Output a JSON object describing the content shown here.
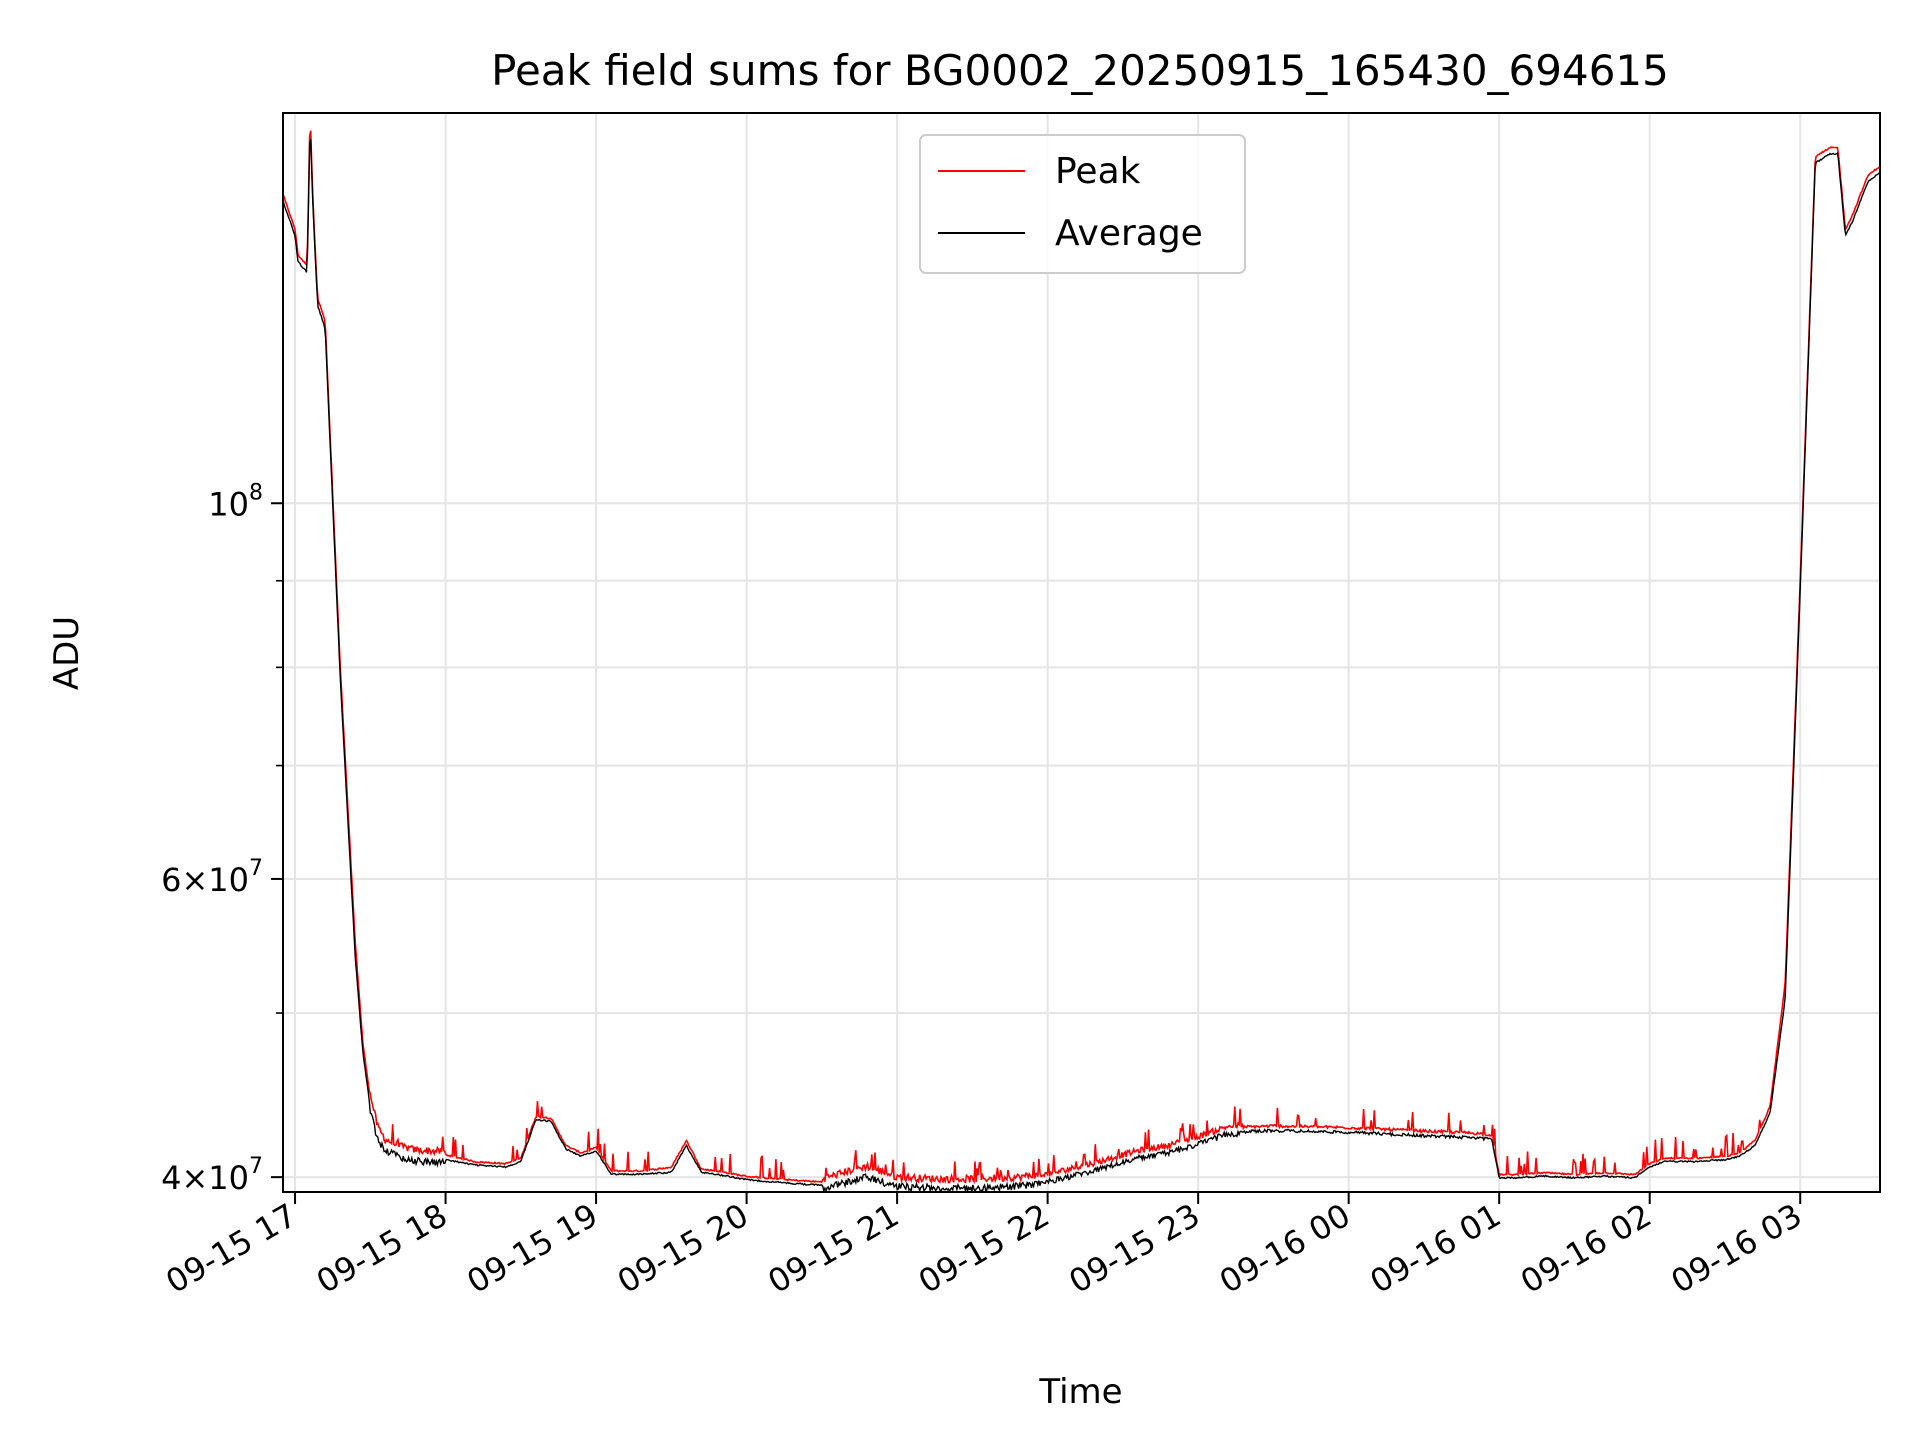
{
  "chart_data": {
    "type": "line",
    "title": "Peak field sums for BG0002_20250915_165430_694615",
    "xlabel": "Time",
    "ylabel": "ADU",
    "yscale": "log",
    "xlim": [
      16.92,
      27.53
    ],
    "ylim": [
      39200000,
      170000000
    ],
    "x_ticks": [
      {
        "value": 17,
        "label": "09-15 17"
      },
      {
        "value": 18,
        "label": "09-15 18"
      },
      {
        "value": 19,
        "label": "09-15 19"
      },
      {
        "value": 20,
        "label": "09-15 20"
      },
      {
        "value": 21,
        "label": "09-15 21"
      },
      {
        "value": 22,
        "label": "09-15 22"
      },
      {
        "value": 23,
        "label": "09-15 23"
      },
      {
        "value": 24,
        "label": "09-16 00"
      },
      {
        "value": 25,
        "label": "09-16 01"
      },
      {
        "value": 26,
        "label": "09-16 02"
      },
      {
        "value": 27,
        "label": "09-16 03"
      }
    ],
    "y_major_ticks": [
      {
        "value": 40000000,
        "mantissa": "4",
        "exponent": "7"
      },
      {
        "value": 60000000,
        "mantissa": "6",
        "exponent": "7"
      },
      {
        "value": 100000000,
        "mantissa": "",
        "exponent": "8"
      }
    ],
    "y_minor_ticks": [
      50000000,
      70000000,
      80000000,
      90000000
    ],
    "x_units": "hours since 2025-09-15 00:00",
    "grid": true,
    "legend_position": "upper-center",
    "series": [
      {
        "name": "Peak",
        "color": "#ff0000",
        "x": [
          16.92,
          17.0,
          17.02,
          17.08,
          17.1,
          17.12,
          17.15,
          17.2,
          17.3,
          17.4,
          17.45,
          17.5,
          17.55,
          17.6,
          17.65,
          17.7,
          17.8,
          18.0,
          18.2,
          18.4,
          18.5,
          18.6,
          18.7,
          18.8,
          18.9,
          19.0,
          19.1,
          19.3,
          19.5,
          19.6,
          19.7,
          19.8,
          20.0,
          20.3,
          20.5,
          20.7,
          20.8,
          21.0,
          21.3,
          21.5,
          21.8,
          22.0,
          22.3,
          22.6,
          22.8,
          23.0,
          23.2,
          23.5,
          24.0,
          24.5,
          24.8,
          24.95,
          25.0,
          25.1,
          25.3,
          25.5,
          25.7,
          25.9,
          26.0,
          26.1,
          26.3,
          26.5,
          26.6,
          26.7,
          26.8,
          26.9,
          27.0,
          27.1,
          27.2,
          27.25,
          27.3,
          27.35,
          27.4,
          27.45,
          27.53
        ],
        "y": [
          152000000,
          145000000,
          140000000,
          138000000,
          170000000,
          150000000,
          132000000,
          128000000,
          80000000,
          55000000,
          48000000,
          44500000,
          42600000,
          41900000,
          41700000,
          41500000,
          41300000,
          41200000,
          40800000,
          40700000,
          41000000,
          43400000,
          43300000,
          41700000,
          41300000,
          41600000,
          40300000,
          40300000,
          40500000,
          42000000,
          40400000,
          40300000,
          40000000,
          39800000,
          39700000,
          40200000,
          40400000,
          39800000,
          39700000,
          39700000,
          39800000,
          40000000,
          40600000,
          41300000,
          41600000,
          42100000,
          42700000,
          42800000,
          42700000,
          42500000,
          42400000,
          42300000,
          40100000,
          40100000,
          40200000,
          40100000,
          40200000,
          40100000,
          40700000,
          41000000,
          41000000,
          41100000,
          41300000,
          42000000,
          44000000,
          52000000,
          90000000,
          160000000,
          162000000,
          162000000,
          145000000,
          148000000,
          152000000,
          156000000,
          158000000
        ]
      },
      {
        "name": "Average",
        "color": "#000000",
        "x": [
          16.92,
          17.0,
          17.02,
          17.08,
          17.1,
          17.12,
          17.15,
          17.2,
          17.3,
          17.4,
          17.45,
          17.5,
          17.55,
          17.6,
          17.65,
          17.7,
          17.8,
          18.0,
          18.2,
          18.4,
          18.5,
          18.6,
          18.7,
          18.8,
          18.9,
          19.0,
          19.1,
          19.3,
          19.5,
          19.6,
          19.7,
          19.8,
          20.0,
          20.3,
          20.5,
          20.7,
          20.8,
          21.0,
          21.3,
          21.5,
          21.8,
          22.0,
          22.3,
          22.6,
          22.8,
          23.0,
          23.2,
          23.5,
          24.0,
          24.5,
          24.8,
          24.95,
          25.0,
          25.1,
          25.3,
          25.5,
          25.7,
          25.9,
          26.0,
          26.1,
          26.3,
          26.5,
          26.6,
          26.7,
          26.8,
          26.9,
          27.0,
          27.1,
          27.2,
          27.25,
          27.3,
          27.35,
          27.4,
          27.45,
          27.53
        ],
        "y": [
          151000000,
          144000000,
          139000000,
          137000000,
          168000000,
          149000000,
          131000000,
          127000000,
          79000000,
          54000000,
          47500000,
          44000000,
          42300000,
          41700000,
          41500000,
          41300000,
          41100000,
          41000000,
          40700000,
          40600000,
          40900000,
          43300000,
          43200000,
          41600000,
          41200000,
          41500000,
          40200000,
          40200000,
          40300000,
          41800000,
          40300000,
          40200000,
          39900000,
          39700000,
          39600000,
          40000000,
          40200000,
          39700000,
          39600000,
          39600000,
          39700000,
          39900000,
          40500000,
          41200000,
          41500000,
          42000000,
          42600000,
          42700000,
          42600000,
          42400000,
          42300000,
          42200000,
          40000000,
          40000000,
          40100000,
          40000000,
          40100000,
          40000000,
          40600000,
          40900000,
          40900000,
          41000000,
          41200000,
          41800000,
          43700000,
          51000000,
          89000000,
          159000000,
          161000000,
          161000000,
          144000000,
          147000000,
          151000000,
          155000000,
          157000000
        ]
      }
    ]
  }
}
